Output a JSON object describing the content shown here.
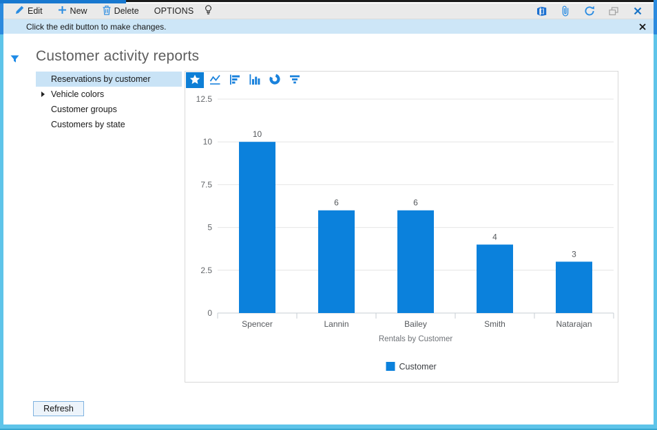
{
  "toolbar": {
    "edit_label": "Edit",
    "new_label": "New",
    "delete_label": "Delete",
    "options_label": "OPTIONS",
    "left_icons": [
      "pencil-icon",
      "plus-icon",
      "trash-icon",
      "lightbulb-icon"
    ],
    "right_icons": [
      "office-icon",
      "paperclip-icon",
      "refresh-icon",
      "popout-icon",
      "close-icon"
    ]
  },
  "notification": {
    "message": "Click the edit button to make changes.",
    "close_icon": "close-icon"
  },
  "page": {
    "title": "Customer activity reports",
    "filter_icon": "filter-funnel-icon"
  },
  "sidebar": {
    "items": [
      {
        "label": "Reservations by customer",
        "selected": true
      },
      {
        "label": "Vehicle colors",
        "expandable": true
      },
      {
        "label": "Customer groups"
      },
      {
        "label": "Customers by state"
      }
    ]
  },
  "chart_toolbar": {
    "buttons": [
      {
        "icon": "star-icon",
        "selected": true
      },
      {
        "icon": "line-chart-icon"
      },
      {
        "icon": "hbar-chart-icon"
      },
      {
        "icon": "column-chart-icon"
      },
      {
        "icon": "pie-chart-icon"
      },
      {
        "icon": "funnel-icon"
      }
    ]
  },
  "chart_data": {
    "type": "bar",
    "categories": [
      "Spencer",
      "Lannin",
      "Bailey",
      "Smith",
      "Natarajan"
    ],
    "values": [
      10,
      6,
      6,
      4,
      3
    ],
    "series_name": "Customer",
    "title": "",
    "xlabel": "Rentals by Customer",
    "ylabel": "",
    "yticks": [
      0,
      2.5,
      5,
      7.5,
      10,
      12.5
    ],
    "ylim": [
      0,
      12.5
    ],
    "bar_color": "#0b81dc",
    "grid": true,
    "data_labels": true,
    "legend_position": "bottom"
  },
  "footer": {
    "refresh_label": "Refresh"
  },
  "colors": {
    "accent_blue": "#0e7fd6",
    "icon_blue": "#2a8ce2",
    "bar_blue": "#0b81dc",
    "frame_sky": "#5ec4e9",
    "notification_bg": "#cde6f7",
    "selected_item_bg": "#c9e3f6",
    "toolbar_bg": "#eaeaea"
  }
}
